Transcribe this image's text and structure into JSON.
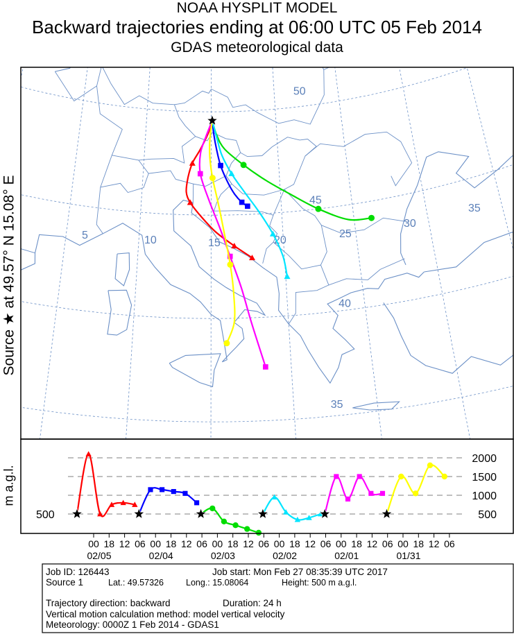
{
  "header": {
    "line1": "NOAA HYSPLIT MODEL",
    "line2": "Backward trajectories ending at 06:00 UTC 05 Feb 2014",
    "line3": "GDAS meteorological data"
  },
  "side_label": "Source ★ at   49.57° N   15.08° E",
  "height_axis_label": "m a.g.l.",
  "map": {
    "lat_labels": [
      "50",
      "45",
      "40",
      "35"
    ],
    "lon_labels": [
      "5",
      "10",
      "15",
      "20",
      "25",
      "30",
      "35"
    ],
    "colors": {
      "coast": "#6a8fc6",
      "grid": "#6a8fc6",
      "label": "#5a7fb8"
    }
  },
  "chart_data": {
    "type": "line",
    "title": "Backward trajectories ending at 06:00 UTC 05 Feb 2014",
    "source": {
      "lat": 49.57326,
      "lon": 15.08064,
      "height_m_agl": 500
    },
    "height_axis": {
      "ticks": [
        500,
        1000,
        1500,
        2000
      ],
      "label": "m a.g.l."
    },
    "time_axis": {
      "hour_ticks": [
        "00",
        "18",
        "12",
        "06",
        "00",
        "18",
        "12",
        "06",
        "00",
        "18",
        "12",
        "06",
        "00",
        "18",
        "12",
        "06",
        "00",
        "18",
        "12",
        "06",
        "00",
        "18",
        "12",
        "06"
      ],
      "date_labels": [
        "02/05",
        "02/04",
        "02/03",
        "02/02",
        "02/01",
        "01/31"
      ]
    },
    "series": [
      {
        "color": "#ff0000",
        "marker": "triangle",
        "track": [
          [
            15.08,
            49.57
          ],
          [
            14.8,
            49.0
          ],
          [
            14.2,
            48.2
          ],
          [
            13.6,
            47.5
          ],
          [
            13.3,
            46.8
          ],
          [
            13.2,
            46.1
          ],
          [
            13.5,
            45.6
          ],
          [
            14.2,
            45.0
          ],
          [
            15.3,
            44.2
          ],
          [
            16.6,
            43.5
          ],
          [
            17.8,
            42.9
          ]
        ],
        "heights": [
          500,
          2100,
          500,
          750,
          800,
          750
        ]
      },
      {
        "color": "#0000ff",
        "marker": "square",
        "track": [
          [
            15.08,
            49.57
          ],
          [
            15.2,
            48.9
          ],
          [
            15.4,
            48.2
          ],
          [
            15.7,
            47.4
          ],
          [
            16.2,
            46.6
          ],
          [
            16.7,
            46.0
          ],
          [
            17.2,
            45.6
          ],
          [
            17.6,
            45.4
          ]
        ],
        "heights": [
          500,
          1150,
          1150,
          1100,
          1050,
          800
        ]
      },
      {
        "color": "#00dd00",
        "marker": "circle",
        "track": [
          [
            15.08,
            49.57
          ],
          [
            15.4,
            48.9
          ],
          [
            16.0,
            48.2
          ],
          [
            17.4,
            47.4
          ],
          [
            19.0,
            46.6
          ],
          [
            20.8,
            45.8
          ],
          [
            22.6,
            45.0
          ],
          [
            24.6,
            44.3
          ],
          [
            26.2,
            44.2
          ]
        ],
        "heights": [
          500,
          650,
          300,
          200,
          100,
          0
        ]
      },
      {
        "color": "#00e5ff",
        "marker": "triangle",
        "track": [
          [
            15.08,
            49.57
          ],
          [
            15.4,
            48.8
          ],
          [
            15.8,
            47.9
          ],
          [
            16.5,
            47.0
          ],
          [
            17.4,
            46.1
          ],
          [
            18.4,
            45.1
          ],
          [
            19.3,
            44.0
          ],
          [
            19.9,
            42.9
          ],
          [
            20.1,
            41.9
          ]
        ],
        "heights": [
          500,
          950,
          550,
          350,
          400,
          500
        ]
      },
      {
        "color": "#ff00ff",
        "marker": "square",
        "track": [
          [
            15.08,
            49.57
          ],
          [
            14.6,
            48.8
          ],
          [
            14.2,
            48.0
          ],
          [
            14.2,
            47.0
          ],
          [
            14.8,
            45.8
          ],
          [
            15.6,
            44.4
          ],
          [
            16.3,
            43.0
          ],
          [
            17.0,
            41.5
          ],
          [
            17.6,
            39.8
          ],
          [
            18.4,
            37.6
          ]
        ],
        "heights": [
          500,
          1500,
          900,
          1500,
          1050,
          1050
        ]
      },
      {
        "color": "#ffff00",
        "marker": "circle",
        "track": [
          [
            15.08,
            49.57
          ],
          [
            14.9,
            48.7
          ],
          [
            14.9,
            47.8
          ],
          [
            15.1,
            46.8
          ],
          [
            15.5,
            45.6
          ],
          [
            15.9,
            44.2
          ],
          [
            16.3,
            42.6
          ],
          [
            16.5,
            41.2
          ],
          [
            16.5,
            39.8
          ],
          [
            16.0,
            38.8
          ]
        ],
        "heights": [
          500,
          1500,
          1050,
          1800,
          1500
        ]
      }
    ]
  },
  "info": {
    "job_id": "Job ID: 126443",
    "job_start": "Job start: Mon Feb 27 08:35:39 UTC 2017",
    "source": "Source 1",
    "lat": "Lat.: 49.57326",
    "lon": "Long.: 15.08064",
    "height": "Height: 500 m a.g.l.",
    "direction": "Trajectory direction: backward",
    "duration": "Duration: 24 h",
    "vertical": "Vertical motion calculation method:   model vertical velocity",
    "meteorology": "Meteorology: 0000Z  1 Feb 2014 - GDAS1"
  }
}
